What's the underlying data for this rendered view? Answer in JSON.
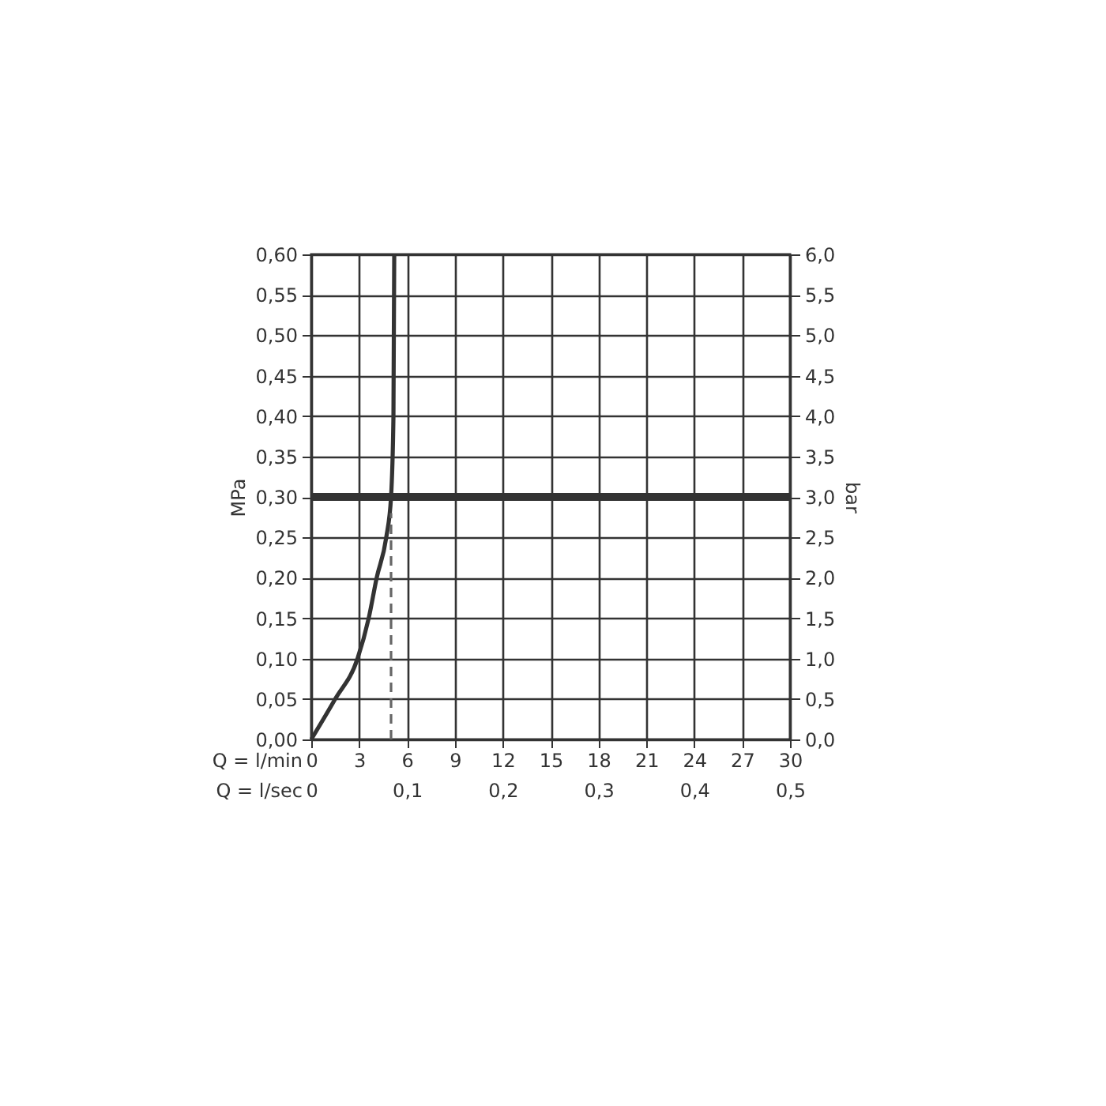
{
  "chart_data": {
    "type": "line",
    "xlabel": "Q = l/min",
    "ylabel": "MPa",
    "y2label": "bar",
    "x2label": "Q = l/sec",
    "xlim": [
      0,
      30
    ],
    "xticks": [
      0,
      3,
      6,
      9,
      12,
      15,
      18,
      21,
      24,
      27,
      30
    ],
    "x2lim": [
      0,
      0.5
    ],
    "x2ticks": [
      {
        "value": 0,
        "label": "0"
      },
      {
        "value": 0.1,
        "label": "0,1"
      },
      {
        "value": 0.2,
        "label": "0,2"
      },
      {
        "value": 0.3,
        "label": "0,3"
      },
      {
        "value": 0.4,
        "label": "0,4"
      },
      {
        "value": 0.5,
        "label": "0,5"
      }
    ],
    "ylim": [
      0,
      0.6
    ],
    "yticks": [
      {
        "value": 0,
        "label": "0,00"
      },
      {
        "value": 0.05,
        "label": "0,05"
      },
      {
        "value": 0.1,
        "label": "0,10"
      },
      {
        "value": 0.15,
        "label": "0,15"
      },
      {
        "value": 0.2,
        "label": "0,20"
      },
      {
        "value": 0.25,
        "label": "0,25"
      },
      {
        "value": 0.3,
        "label": "0,30"
      },
      {
        "value": 0.35,
        "label": "0,35"
      },
      {
        "value": 0.4,
        "label": "0,40"
      },
      {
        "value": 0.45,
        "label": "0,45"
      },
      {
        "value": 0.5,
        "label": "0,50"
      },
      {
        "value": 0.55,
        "label": "0,55"
      },
      {
        "value": 0.6,
        "label": "0,60"
      }
    ],
    "y2lim": [
      0,
      6
    ],
    "y2ticks": [
      {
        "value": 0,
        "label": "0,0"
      },
      {
        "value": 0.5,
        "label": "0,5"
      },
      {
        "value": 1,
        "label": "1,0"
      },
      {
        "value": 1.5,
        "label": "1,5"
      },
      {
        "value": 2,
        "label": "2,0"
      },
      {
        "value": 2.5,
        "label": "2,5"
      },
      {
        "value": 3,
        "label": "3,0"
      },
      {
        "value": 3.5,
        "label": "3,5"
      },
      {
        "value": 4,
        "label": "4,0"
      },
      {
        "value": 4.5,
        "label": "4,5"
      },
      {
        "value": 5,
        "label": "5,0"
      },
      {
        "value": 5.5,
        "label": "5,5"
      },
      {
        "value": 6,
        "label": "6,0"
      }
    ],
    "grid": true,
    "series": [
      {
        "type": "line",
        "color": "#333333",
        "line_style": "solid",
        "x": [
          0,
          1.5,
          2.9,
          3.6,
          4.1,
          4.7,
          5.0,
          5.15,
          5.2
        ],
        "values": [
          0,
          0.05,
          0.1,
          0.15,
          0.2,
          0.25,
          0.3,
          0.4,
          0.6
        ]
      },
      {
        "type": "line",
        "color": "#666666",
        "line_style": "dashed",
        "x": [
          5,
          5
        ],
        "values": [
          0,
          0.28
        ]
      }
    ],
    "ref_lines": [
      {
        "axis": "y",
        "value": 0.3,
        "color": "#333333"
      }
    ]
  }
}
